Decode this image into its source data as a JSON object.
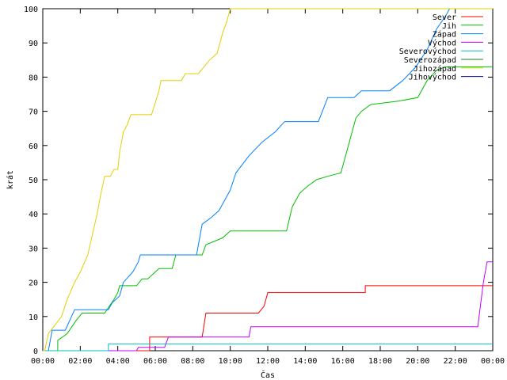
{
  "chart_data": {
    "type": "line",
    "xlabel": "Čas",
    "ylabel": "krát",
    "xlim": [
      0,
      24
    ],
    "ylim": [
      0,
      100
    ],
    "x_ticks": [
      "00:00",
      "02:00",
      "04:00",
      "06:00",
      "08:00",
      "10:00",
      "12:00",
      "14:00",
      "16:00",
      "18:00",
      "20:00",
      "22:00",
      "00:00"
    ],
    "y_ticks": [
      "0",
      "10",
      "20",
      "30",
      "40",
      "50",
      "60",
      "70",
      "80",
      "90",
      "100"
    ],
    "legend_position": "top-right",
    "grid": false,
    "series": [
      {
        "name": "Sever",
        "color": "#ff0000",
        "points": [
          [
            0,
            0
          ],
          [
            5.7,
            0
          ],
          [
            5.7,
            4
          ],
          [
            8.5,
            4
          ],
          [
            8.7,
            11
          ],
          [
            11.5,
            11
          ],
          [
            11.8,
            13
          ],
          [
            12,
            17
          ],
          [
            17.2,
            17
          ],
          [
            17.2,
            19
          ],
          [
            24,
            19
          ]
        ]
      },
      {
        "name": "Jih",
        "color": "#00c000",
        "points": [
          [
            0,
            0
          ],
          [
            0.8,
            0
          ],
          [
            0.8,
            3
          ],
          [
            1.3,
            5
          ],
          [
            1.8,
            9
          ],
          [
            2.1,
            11
          ],
          [
            3.3,
            11
          ],
          [
            3.8,
            15
          ],
          [
            4,
            17
          ],
          [
            4.1,
            19
          ],
          [
            5,
            19
          ],
          [
            5.3,
            21
          ],
          [
            5.6,
            21
          ],
          [
            6.2,
            24
          ],
          [
            6.9,
            24
          ],
          [
            7.1,
            28
          ],
          [
            8.5,
            28
          ],
          [
            8.7,
            31
          ],
          [
            9.6,
            33
          ],
          [
            10,
            35
          ],
          [
            13,
            35
          ],
          [
            13.3,
            42
          ],
          [
            13.7,
            46
          ],
          [
            14.1,
            48
          ],
          [
            14.6,
            50
          ],
          [
            15.2,
            51
          ],
          [
            15.9,
            52
          ],
          [
            16.3,
            60
          ],
          [
            16.7,
            68
          ],
          [
            17,
            70
          ],
          [
            17.5,
            72
          ],
          [
            19,
            73
          ],
          [
            20,
            74
          ],
          [
            20.5,
            79
          ],
          [
            21,
            82
          ],
          [
            21.5,
            83
          ],
          [
            22.5,
            83
          ],
          [
            24,
            83
          ]
        ]
      },
      {
        "name": "Západ",
        "color": "#0080ff",
        "points": [
          [
            0,
            0
          ],
          [
            0.3,
            0
          ],
          [
            0.5,
            6
          ],
          [
            1.2,
            6
          ],
          [
            1.7,
            12
          ],
          [
            3.5,
            12
          ],
          [
            3.7,
            14
          ],
          [
            4.1,
            16
          ],
          [
            4.3,
            20
          ],
          [
            4.8,
            23
          ],
          [
            5.1,
            26
          ],
          [
            5.2,
            28
          ],
          [
            8.2,
            28
          ],
          [
            8.5,
            37
          ],
          [
            9,
            39
          ],
          [
            9.4,
            41
          ],
          [
            10,
            47
          ],
          [
            10.3,
            52
          ],
          [
            11,
            57
          ],
          [
            11.7,
            61
          ],
          [
            12.4,
            64
          ],
          [
            12.9,
            67
          ],
          [
            14.7,
            67
          ],
          [
            15.2,
            74
          ],
          [
            16.6,
            74
          ],
          [
            17,
            76
          ],
          [
            18.5,
            76
          ],
          [
            19.2,
            79
          ],
          [
            19.9,
            83
          ],
          [
            20.5,
            88
          ],
          [
            21,
            94
          ],
          [
            21.5,
            98
          ],
          [
            21.7,
            100
          ],
          [
            24,
            100
          ]
        ]
      },
      {
        "name": "Východ",
        "color": "#c000ff",
        "points": [
          [
            0,
            0
          ],
          [
            5,
            0
          ],
          [
            5.1,
            1
          ],
          [
            6.5,
            1
          ],
          [
            6.7,
            4
          ],
          [
            11,
            4
          ],
          [
            11.1,
            7
          ],
          [
            23.2,
            7
          ],
          [
            23.5,
            20
          ],
          [
            23.7,
            26
          ],
          [
            24,
            26
          ]
        ]
      },
      {
        "name": "Severovýchod",
        "color": "#00c0c0",
        "points": [
          [
            0,
            0
          ],
          [
            3.5,
            0
          ],
          [
            3.5,
            2
          ],
          [
            24,
            2
          ]
        ]
      },
      {
        "name": "Severozápad",
        "color": "#208020",
        "points": []
      },
      {
        "name": "Jihozápad",
        "color": "#e0d000",
        "points": [
          [
            0,
            0
          ],
          [
            0.1,
            0
          ],
          [
            0.3,
            5
          ],
          [
            1,
            10
          ],
          [
            1.3,
            15
          ],
          [
            1.7,
            20
          ],
          [
            2,
            23
          ],
          [
            2.4,
            28
          ],
          [
            2.9,
            40
          ],
          [
            3.1,
            46
          ],
          [
            3.3,
            51
          ],
          [
            3.6,
            51
          ],
          [
            3.8,
            53
          ],
          [
            4,
            53
          ],
          [
            4.1,
            58
          ],
          [
            4.3,
            64
          ],
          [
            4.5,
            66
          ],
          [
            4.7,
            69
          ],
          [
            5.8,
            69
          ],
          [
            6.2,
            76
          ],
          [
            6.3,
            79
          ],
          [
            7.4,
            79
          ],
          [
            7.6,
            81
          ],
          [
            8.3,
            81
          ],
          [
            8.6,
            83
          ],
          [
            8.9,
            85
          ],
          [
            9.3,
            87
          ],
          [
            9.6,
            93
          ],
          [
            9.8,
            96
          ],
          [
            10,
            100
          ],
          [
            24,
            100
          ]
        ]
      },
      {
        "name": "Jihovýchod",
        "color": "#000080",
        "points": []
      }
    ]
  }
}
